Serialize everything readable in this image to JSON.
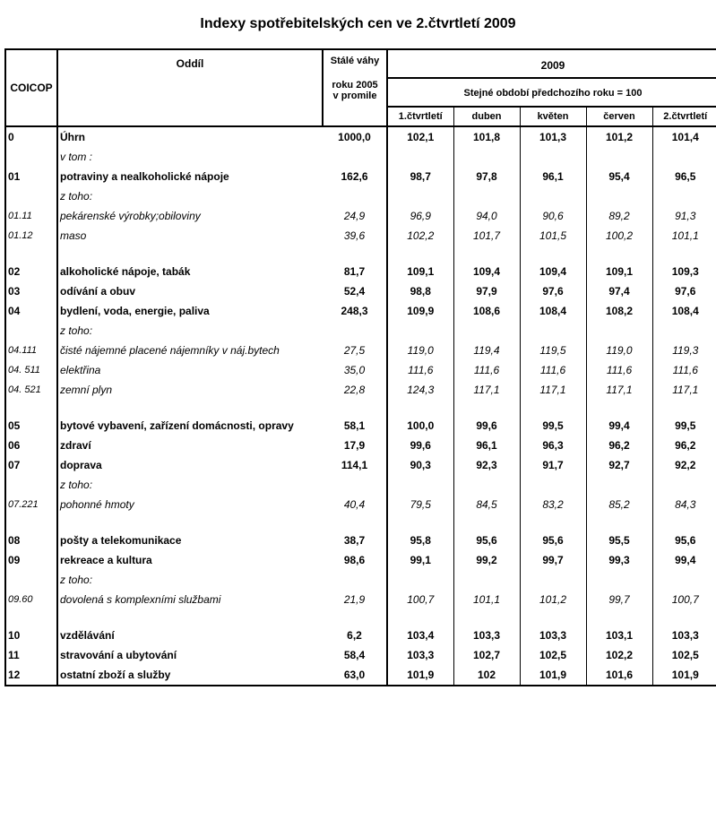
{
  "title": "Indexy spotřebitelských cen ve 2.čtvrtletí 2009",
  "headers": {
    "coicop": "COICOP",
    "oddil": "Oddíl",
    "vahy_line1": "Stálé váhy",
    "vahy_line2": "roku 2005",
    "vahy_line3": "v promile",
    "year": "2009",
    "subheader": "Stejné období předchozího roku = 100",
    "cols": {
      "q1": "1.čtvrtletí",
      "apr": "duben",
      "may": "květen",
      "jun": "červen",
      "q2": "2.čtvrtletí"
    }
  },
  "rows": [
    {
      "coicop": "0",
      "label": "Úhrn",
      "w": "1000,0",
      "q1": "102,1",
      "apr": "101,8",
      "may": "101,3",
      "jun": "101,2",
      "q2": "101,4",
      "style": "bold"
    },
    {
      "label": "v tom :",
      "style": "italic",
      "type": "note"
    },
    {
      "coicop": "01",
      "label": "potraviny a nealkoholické nápoje",
      "w": "162,6",
      "q1": "98,7",
      "apr": "97,8",
      "may": "96,1",
      "jun": "95,4",
      "q2": "96,5",
      "style": "bold"
    },
    {
      "label": "z toho:",
      "style": "italic",
      "type": "note"
    },
    {
      "coicop": "01.11",
      "label": "pekárenské výrobky;obiloviny",
      "w": "24,9",
      "q1": "96,9",
      "apr": "94,0",
      "may": "90,6",
      "jun": "89,2",
      "q2": "91,3",
      "style": "italic"
    },
    {
      "coicop": "01.12",
      "label": "maso",
      "w": "39,6",
      "q1": "102,2",
      "apr": "101,7",
      "may": "101,5",
      "jun": "100,2",
      "q2": "101,1",
      "style": "italic"
    },
    {
      "type": "gap"
    },
    {
      "coicop": "02",
      "label": "alkoholické nápoje, tabák",
      "w": "81,7",
      "q1": "109,1",
      "apr": "109,4",
      "may": "109,4",
      "jun": "109,1",
      "q2": "109,3",
      "style": "bold"
    },
    {
      "coicop": "03",
      "label": "odívání a obuv",
      "w": "52,4",
      "q1": "98,8",
      "apr": "97,9",
      "may": "97,6",
      "jun": "97,4",
      "q2": "97,6",
      "style": "bold"
    },
    {
      "coicop": "04",
      "label": "bydlení, voda, energie, paliva",
      "w": "248,3",
      "q1": "109,9",
      "apr": "108,6",
      "may": "108,4",
      "jun": "108,2",
      "q2": "108,4",
      "style": "bold"
    },
    {
      "label": "z toho:",
      "style": "italic",
      "type": "note"
    },
    {
      "coicop": "04.111",
      "label": "čisté nájemné placené nájemníky v náj.bytech",
      "w": "27,5",
      "q1": "119,0",
      "apr": "119,4",
      "may": "119,5",
      "jun": "119,0",
      "q2": "119,3",
      "style": "italic"
    },
    {
      "coicop": "04. 511",
      "label": "elektřina",
      "w": "35,0",
      "q1": "111,6",
      "apr": "111,6",
      "may": "111,6",
      "jun": "111,6",
      "q2": "111,6",
      "style": "italic"
    },
    {
      "coicop": "04. 521",
      "label": "zemní plyn",
      "w": "22,8",
      "q1": "124,3",
      "apr": "117,1",
      "may": "117,1",
      "jun": "117,1",
      "q2": "117,1",
      "style": "italic"
    },
    {
      "type": "gap"
    },
    {
      "coicop": "05",
      "label": "bytové vybavení, zařízení domácnosti, opravy",
      "w": "58,1",
      "q1": "100,0",
      "apr": "99,6",
      "may": "99,5",
      "jun": "99,4",
      "q2": "99,5",
      "style": "bold"
    },
    {
      "coicop": "06",
      "label": "zdraví",
      "w": "17,9",
      "q1": "99,6",
      "apr": "96,1",
      "may": "96,3",
      "jun": "96,2",
      "q2": "96,2",
      "style": "bold"
    },
    {
      "coicop": "07",
      "label": "doprava",
      "w": "114,1",
      "q1": "90,3",
      "apr": "92,3",
      "may": "91,7",
      "jun": "92,7",
      "q2": "92,2",
      "style": "bold"
    },
    {
      "label": "z toho:",
      "style": "italic",
      "type": "note"
    },
    {
      "coicop": "07.221",
      "label": "pohonné hmoty",
      "w": "40,4",
      "q1": "79,5",
      "apr": "84,5",
      "may": "83,2",
      "jun": "85,2",
      "q2": "84,3",
      "style": "italic"
    },
    {
      "type": "gap"
    },
    {
      "coicop": "08",
      "label": "pošty a telekomunikace",
      "w": "38,7",
      "q1": "95,8",
      "apr": "95,6",
      "may": "95,6",
      "jun": "95,5",
      "q2": "95,6",
      "style": "bold"
    },
    {
      "coicop": "09",
      "label": "rekreace a kultura",
      "w": "98,6",
      "q1": "99,1",
      "apr": "99,2",
      "may": "99,7",
      "jun": "99,3",
      "q2": "99,4",
      "style": "bold"
    },
    {
      "label": "z toho:",
      "style": "italic",
      "type": "note"
    },
    {
      "coicop": "09.60",
      "label": "dovolená s komplexními službami",
      "w": "21,9",
      "q1": "100,7",
      "apr": "101,1",
      "may": "101,2",
      "jun": "99,7",
      "q2": "100,7",
      "style": "italic"
    },
    {
      "type": "gap"
    },
    {
      "coicop": "10",
      "label": "vzdělávání",
      "w": "6,2",
      "q1": "103,4",
      "apr": "103,3",
      "may": "103,3",
      "jun": "103,1",
      "q2": "103,3",
      "style": "bold"
    },
    {
      "coicop": "11",
      "label": "stravování a ubytování",
      "w": "58,4",
      "q1": "103,3",
      "apr": "102,7",
      "may": "102,5",
      "jun": "102,2",
      "q2": "102,5",
      "style": "bold"
    },
    {
      "coicop": "12",
      "label": "ostatní zboží a služby",
      "w": "63,0",
      "q1": "101,9",
      "apr": "102",
      "may": "101,9",
      "jun": "101,6",
      "q2": "101,9",
      "style": "bold"
    }
  ]
}
